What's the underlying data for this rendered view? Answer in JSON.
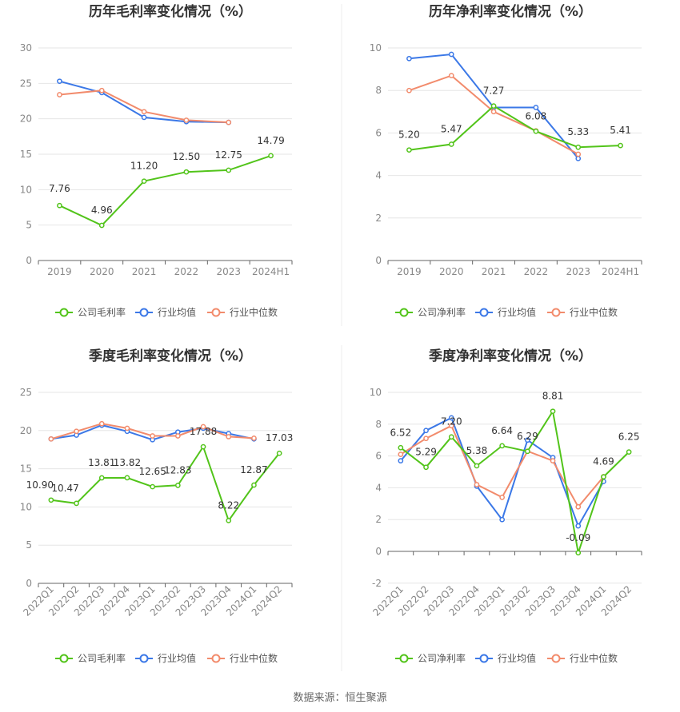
{
  "source": "数据来源：恒生聚源",
  "legend_colors": {
    "company": "#52c41a",
    "avg": "#3b78e7",
    "median": "#f28b6c"
  },
  "chart_data": [
    {
      "type": "line",
      "title": "历年毛利率变化情况（%）",
      "categories": [
        "2019",
        "2020",
        "2021",
        "2022",
        "2023",
        "2024H1"
      ],
      "ylim": [
        0,
        30
      ],
      "yticks": [
        0,
        5,
        10,
        15,
        20,
        25,
        30
      ],
      "legend": [
        "公司毛利率",
        "行业均值",
        "行业中位数"
      ],
      "series": [
        {
          "name": "公司毛利率",
          "values": [
            7.76,
            4.96,
            11.2,
            12.5,
            12.75,
            14.79
          ],
          "labels": [
            "7.76",
            "4.96",
            "11.20",
            "12.50",
            "12.75",
            "14.79"
          ]
        },
        {
          "name": "行业均值",
          "values": [
            25.3,
            23.7,
            20.2,
            19.6,
            19.5,
            null
          ]
        },
        {
          "name": "行业中位数",
          "values": [
            23.4,
            24.0,
            21.0,
            19.8,
            19.5,
            null
          ]
        }
      ]
    },
    {
      "type": "line",
      "title": "历年净利率变化情况（%）",
      "categories": [
        "2019",
        "2020",
        "2021",
        "2022",
        "2023",
        "2024H1"
      ],
      "ylim": [
        0,
        10
      ],
      "yticks": [
        0,
        2,
        4,
        6,
        8,
        10
      ],
      "legend": [
        "公司净利率",
        "行业均值",
        "行业中位数"
      ],
      "series": [
        {
          "name": "公司净利率",
          "values": [
            5.2,
            5.47,
            7.27,
            6.08,
            5.33,
            5.41
          ],
          "labels": [
            "5.20",
            "5.47",
            "7.27",
            "6.08",
            "5.33",
            "5.41"
          ]
        },
        {
          "name": "行业均值",
          "values": [
            9.5,
            9.7,
            7.2,
            7.2,
            4.8,
            null
          ]
        },
        {
          "name": "行业中位数",
          "values": [
            8.0,
            8.7,
            7.0,
            6.1,
            5.0,
            null
          ]
        }
      ]
    },
    {
      "type": "line",
      "title": "季度毛利率变化情况（%）",
      "categories": [
        "2022Q1",
        "2022Q2",
        "2022Q3",
        "2022Q4",
        "2023Q1",
        "2023Q2",
        "2023Q3",
        "2023Q4",
        "2024Q1",
        "2024Q2"
      ],
      "ylim": [
        0,
        25
      ],
      "yticks": [
        0,
        5,
        10,
        15,
        20,
        25
      ],
      "legend": [
        "公司毛利率",
        "行业均值",
        "行业中位数"
      ],
      "series": [
        {
          "name": "公司毛利率",
          "values": [
            10.9,
            10.47,
            13.81,
            13.82,
            12.65,
            12.83,
            17.88,
            8.22,
            12.87,
            17.03
          ],
          "labels": [
            "10.90",
            "10.47",
            "13.81",
            "13.82",
            "12.65",
            "12.83",
            "17.88",
            "8.22",
            "12.87",
            "17.03"
          ]
        },
        {
          "name": "行业均值",
          "values": [
            18.9,
            19.4,
            20.7,
            19.9,
            18.8,
            19.8,
            20.3,
            19.6,
            18.9,
            null
          ]
        },
        {
          "name": "行业中位数",
          "values": [
            18.9,
            19.9,
            20.9,
            20.3,
            19.3,
            19.3,
            20.5,
            19.2,
            19.0,
            null
          ]
        }
      ]
    },
    {
      "type": "line",
      "title": "季度净利率变化情况（%）",
      "categories": [
        "2022Q1",
        "2022Q2",
        "2022Q3",
        "2022Q4",
        "2023Q1",
        "2023Q2",
        "2023Q3",
        "2023Q4",
        "2024Q1",
        "2024Q2"
      ],
      "ylim": [
        -2,
        10
      ],
      "yticks": [
        -2,
        0,
        2,
        4,
        6,
        8,
        10
      ],
      "legend": [
        "公司净利率",
        "行业均值",
        "行业中位数"
      ],
      "series": [
        {
          "name": "公司净利率",
          "values": [
            6.52,
            5.29,
            7.2,
            5.38,
            6.64,
            6.29,
            8.81,
            -0.09,
            4.69,
            6.25
          ],
          "labels": [
            "6.52",
            "5.29",
            "7.20",
            "5.38",
            "6.64",
            "6.29",
            "8.81",
            "-0.09",
            "4.69",
            "6.25"
          ]
        },
        {
          "name": "行业均值",
          "values": [
            5.7,
            7.6,
            8.4,
            4.1,
            2.0,
            7.0,
            5.9,
            1.6,
            4.4,
            null
          ]
        },
        {
          "name": "行业中位数",
          "values": [
            6.1,
            7.1,
            7.9,
            4.2,
            3.4,
            6.3,
            5.7,
            2.8,
            4.7,
            null
          ]
        }
      ]
    }
  ]
}
